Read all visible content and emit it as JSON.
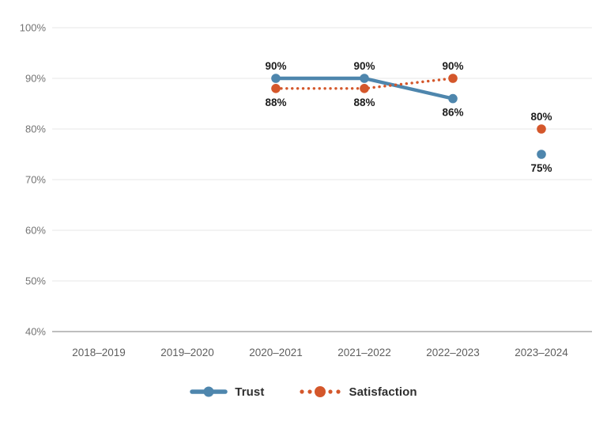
{
  "chart_data": {
    "type": "line",
    "title": "",
    "categories": [
      "2018–2019",
      "2019–2020",
      "2020–2021",
      "2021–2022",
      "2022–2023",
      "2023–2024"
    ],
    "y_axis": {
      "min": 40,
      "max": 100,
      "step": 10,
      "ticks": [
        "100%",
        "90%",
        "80%",
        "70%",
        "60%",
        "50%",
        "40%"
      ]
    },
    "grid": true,
    "series": [
      {
        "name": "Trust",
        "color": "#4e86ad",
        "line_style": "solid",
        "values": [
          null,
          null,
          90,
          90,
          86,
          75
        ],
        "line_span": [
          2,
          4
        ],
        "data_labels": [
          null,
          null,
          "90%",
          "90%",
          "86%",
          "75%"
        ],
        "label_positions": [
          null,
          null,
          "above",
          "above",
          "below",
          "below"
        ]
      },
      {
        "name": "Satisfaction",
        "color": "#d4572b",
        "line_style": "dotted",
        "values": [
          null,
          null,
          88,
          88,
          90,
          80
        ],
        "line_span": [
          2,
          4
        ],
        "data_labels": [
          null,
          null,
          "88%",
          "88%",
          "90%",
          "80%"
        ],
        "label_positions": [
          null,
          null,
          "below",
          "below",
          "above",
          "above"
        ]
      }
    ],
    "legend": {
      "position": "bottom",
      "entries": [
        "Trust",
        "Satisfaction"
      ]
    }
  },
  "colors": {
    "background": "#ffffff",
    "grid": "#e7e7e7",
    "axis": "#a8a8a8",
    "y_tick_label": "#737373",
    "x_tick_label": "#5e5e5e",
    "data_label": "#1c1c1c"
  }
}
